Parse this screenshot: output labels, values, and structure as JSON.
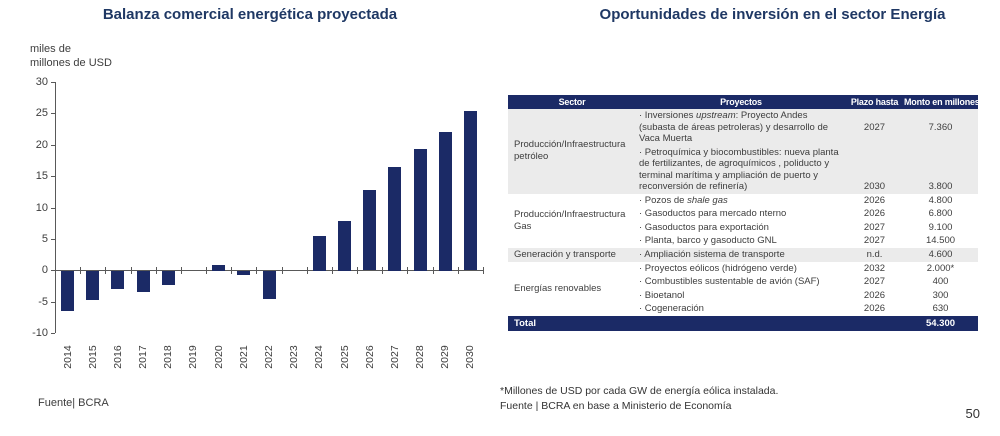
{
  "page_number": "50",
  "colors": {
    "navy": "#1b2a66",
    "title_navy": "#1f3864",
    "shaded_row": "#ebebeb",
    "axis": "#595959",
    "text": "#3d3d3d"
  },
  "chart_data": [
    {
      "type": "bar",
      "title": "Balanza comercial energética proyectada",
      "ylabel": "miles de\nmillones de USD",
      "categories": [
        "2014",
        "2015",
        "2016",
        "2017",
        "2018",
        "2019",
        "2020",
        "2021",
        "2022",
        "2023",
        "2024",
        "2025",
        "2026",
        "2027",
        "2028",
        "2029",
        "2030"
      ],
      "values": [
        -6.4,
        -4.6,
        -2.9,
        -3.4,
        -2.3,
        0,
        0.9,
        -0.6,
        -4.5,
        0,
        5.5,
        7.9,
        12.8,
        16.5,
        19.4,
        22.1,
        25.4
      ],
      "ylim": [
        -10,
        30
      ],
      "ytick_step": 5,
      "grid": false,
      "legend": false,
      "bar_color": "#1b2a66",
      "source": "Fuente| BCRA"
    },
    {
      "type": "table",
      "title": "Oportunidades de inversión en el sector Energía",
      "columns": [
        "Sector",
        "Proyectos",
        "Plazo hasta",
        "Monto en millones"
      ],
      "groups": [
        {
          "sector": "Producción/Infraestructura petróleo",
          "shaded": true,
          "rows": [
            {
              "project": "· Inversiones *upstream*: Proyecto Andes (subasta de áreas petroleras) y desarrollo de Vaca Muerta",
              "plazo": "2027",
              "monto": "7.360",
              "valign": "middle"
            },
            {
              "project": "· Petroquímica y biocombustibles: nueva planta de fertilizantes, de agroquímicos , poliducto y terminal marítima y ampliación de puerto y reconversión de refinería)",
              "plazo": "2030",
              "monto": "3.800",
              "valign": "bottom"
            }
          ]
        },
        {
          "sector": "Producción/Infraestructura Gas",
          "shaded": false,
          "rows": [
            {
              "project": "· Pozos de *shale gas*",
              "plazo": "2026",
              "monto": "4.800"
            },
            {
              "project": "· Gasoductos para mercado nterno",
              "plazo": "2026",
              "monto": "6.800"
            },
            {
              "project": "· Gasoductos para exportación",
              "plazo": "2027",
              "monto": "9.100"
            },
            {
              "project": "· Planta, barco y gasoducto GNL",
              "plazo": "2027",
              "monto": "14.500"
            }
          ]
        },
        {
          "sector": "Generación y transporte",
          "shaded": true,
          "rows": [
            {
              "project": "· Ampliación sistema de transporte",
              "plazo": "n.d.",
              "monto": "4.600"
            }
          ]
        },
        {
          "sector": "Energías renovables",
          "shaded": false,
          "rows": [
            {
              "project": "· Proyectos eólicos (hidrógeno verde)",
              "plazo": "2032",
              "monto": "2.000*"
            },
            {
              "project": "· Combustibles sustentable de avión (SAF)",
              "plazo": "2027",
              "monto": "400"
            },
            {
              "project": "· Bioetanol",
              "plazo": "2026",
              "monto": "300"
            },
            {
              "project": "· Cogeneración",
              "plazo": "2026",
              "monto": "630"
            }
          ]
        }
      ],
      "total": {
        "label": "Total",
        "value": "54.300"
      },
      "footnotes": [
        "*Millones de USD por cada GW de energía eólica instalada.",
        "Fuente | BCRA en base a Ministerio de Economía"
      ]
    }
  ]
}
